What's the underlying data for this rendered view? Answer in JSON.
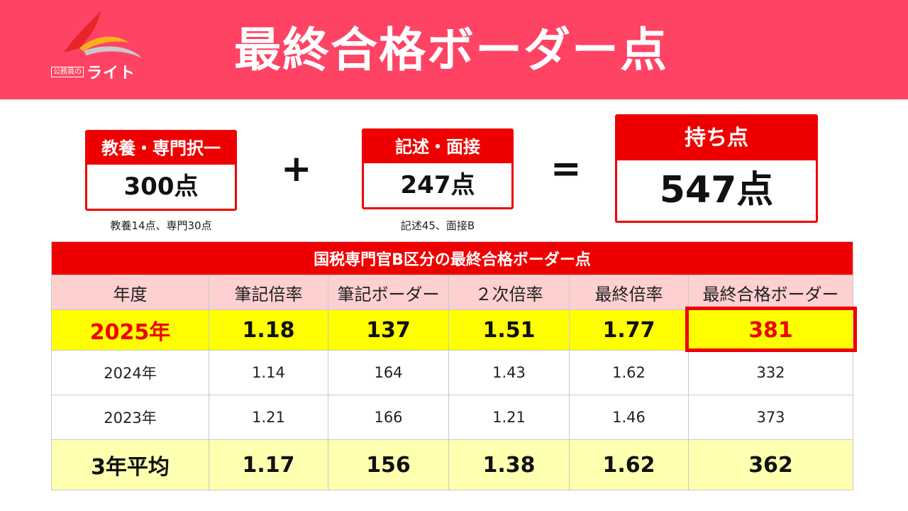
{
  "header": {
    "title": "最終合格ボーダー点",
    "logo_small": "公務員の",
    "logo_big": "ライト"
  },
  "colors": {
    "header_bg": "#ff4364",
    "accent_red": "#ee0000",
    "highlight_yellow": "#ffff00",
    "avg_yellow": "#ffffb0",
    "table_head_pink": "#ffd0d0"
  },
  "score_boxes": [
    {
      "label": "教養・専門択一",
      "value": "300点",
      "note": "教養14点、専門30点"
    },
    {
      "label": "記述・面接",
      "value": "247点",
      "note": "記述45、面接B"
    },
    {
      "label": "持ち点",
      "value": "547点"
    }
  ],
  "operators": {
    "plus": "+",
    "equals": "="
  },
  "table": {
    "caption": "国税専門官B区分の最終合格ボーダー点",
    "headers": [
      "年度",
      "筆記倍率",
      "筆記ボーダー",
      "２次倍率",
      "最終倍率",
      "最終合格ボーダー"
    ],
    "rows": [
      [
        "2025年",
        "1.18",
        "137",
        "1.51",
        "1.77",
        "381"
      ],
      [
        "2024年",
        "1.14",
        "164",
        "1.43",
        "1.62",
        "332"
      ],
      [
        "2023年",
        "1.21",
        "166",
        "1.21",
        "1.46",
        "373"
      ]
    ],
    "average": [
      "3年平均",
      "1.17",
      "156",
      "1.38",
      "1.62",
      "362"
    ]
  }
}
